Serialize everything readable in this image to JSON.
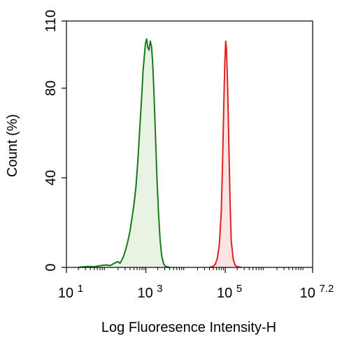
{
  "chart_data": {
    "type": "area",
    "title": "",
    "xlabel": "Log Fluoresence Intensity-H",
    "ylabel": "Count  (%)",
    "x_scale": "log10",
    "xlim": [
      1,
      7.2
    ],
    "ylim": [
      0,
      110
    ],
    "x_ticks": [
      {
        "base": "10",
        "exp": "1",
        "value": 1
      },
      {
        "base": "10",
        "exp": "3",
        "value": 3
      },
      {
        "base": "10",
        "exp": "5",
        "value": 5
      },
      {
        "base": "10",
        "exp": "7.2",
        "value": 7.2
      }
    ],
    "y_ticks": [
      {
        "label": "0",
        "value": 0
      },
      {
        "label": "40",
        "value": 40
      },
      {
        "label": "80",
        "value": 80
      },
      {
        "label": "110",
        "value": 110
      }
    ],
    "grid": false,
    "legend": "none",
    "series": [
      {
        "color": "#1a7a1a",
        "fill": "#e8f3e4",
        "points": [
          [
            1.3,
            0
          ],
          [
            1.5,
            0.4
          ],
          [
            1.7,
            0.3
          ],
          [
            1.9,
            0.9
          ],
          [
            2.0,
            1.1
          ],
          [
            2.1,
            0.8
          ],
          [
            2.2,
            1.8
          ],
          [
            2.3,
            2.6
          ],
          [
            2.35,
            1.8
          ],
          [
            2.4,
            3.4
          ],
          [
            2.45,
            5.5
          ],
          [
            2.5,
            8.5
          ],
          [
            2.55,
            12
          ],
          [
            2.6,
            16
          ],
          [
            2.65,
            22
          ],
          [
            2.7,
            28
          ],
          [
            2.75,
            36
          ],
          [
            2.8,
            48
          ],
          [
            2.85,
            63
          ],
          [
            2.9,
            78
          ],
          [
            2.93,
            88
          ],
          [
            2.96,
            94
          ],
          [
            2.99,
            100
          ],
          [
            3.02,
            102
          ],
          [
            3.05,
            98
          ],
          [
            3.08,
            97
          ],
          [
            3.11,
            101
          ],
          [
            3.14,
            99
          ],
          [
            3.17,
            92
          ],
          [
            3.2,
            80
          ],
          [
            3.24,
            60
          ],
          [
            3.28,
            40
          ],
          [
            3.32,
            24
          ],
          [
            3.36,
            12
          ],
          [
            3.4,
            5
          ],
          [
            3.45,
            1.5
          ],
          [
            3.5,
            0.4
          ],
          [
            3.6,
            0
          ]
        ]
      },
      {
        "color": "#dd2222",
        "fill": "#fde4e4",
        "points": [
          [
            4.6,
            0
          ],
          [
            4.7,
            0.5
          ],
          [
            4.75,
            1.5
          ],
          [
            4.8,
            4
          ],
          [
            4.85,
            10
          ],
          [
            4.9,
            25
          ],
          [
            4.93,
            45
          ],
          [
            4.96,
            70
          ],
          [
            4.99,
            92
          ],
          [
            5.01,
            101
          ],
          [
            5.03,
            98
          ],
          [
            5.06,
            80
          ],
          [
            5.09,
            55
          ],
          [
            5.12,
            30
          ],
          [
            5.15,
            12
          ],
          [
            5.2,
            3.5
          ],
          [
            5.25,
            1
          ],
          [
            5.3,
            0.3
          ],
          [
            5.4,
            0
          ]
        ]
      }
    ]
  }
}
